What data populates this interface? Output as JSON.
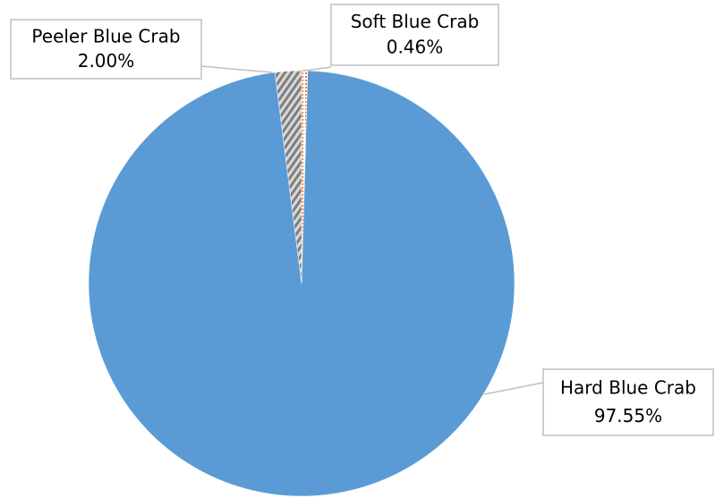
{
  "chart_data": {
    "type": "pie",
    "categories": [
      "Soft Blue Crab",
      "Hard Blue Crab",
      "Peeler Blue Crab"
    ],
    "values": [
      0.46,
      97.55,
      2.0
    ],
    "value_labels": [
      "0.46%",
      "97.55%",
      "2.00%"
    ],
    "colors": [
      "#ed7d31",
      "#5b9bd5",
      "#7f7f7f"
    ]
  }
}
